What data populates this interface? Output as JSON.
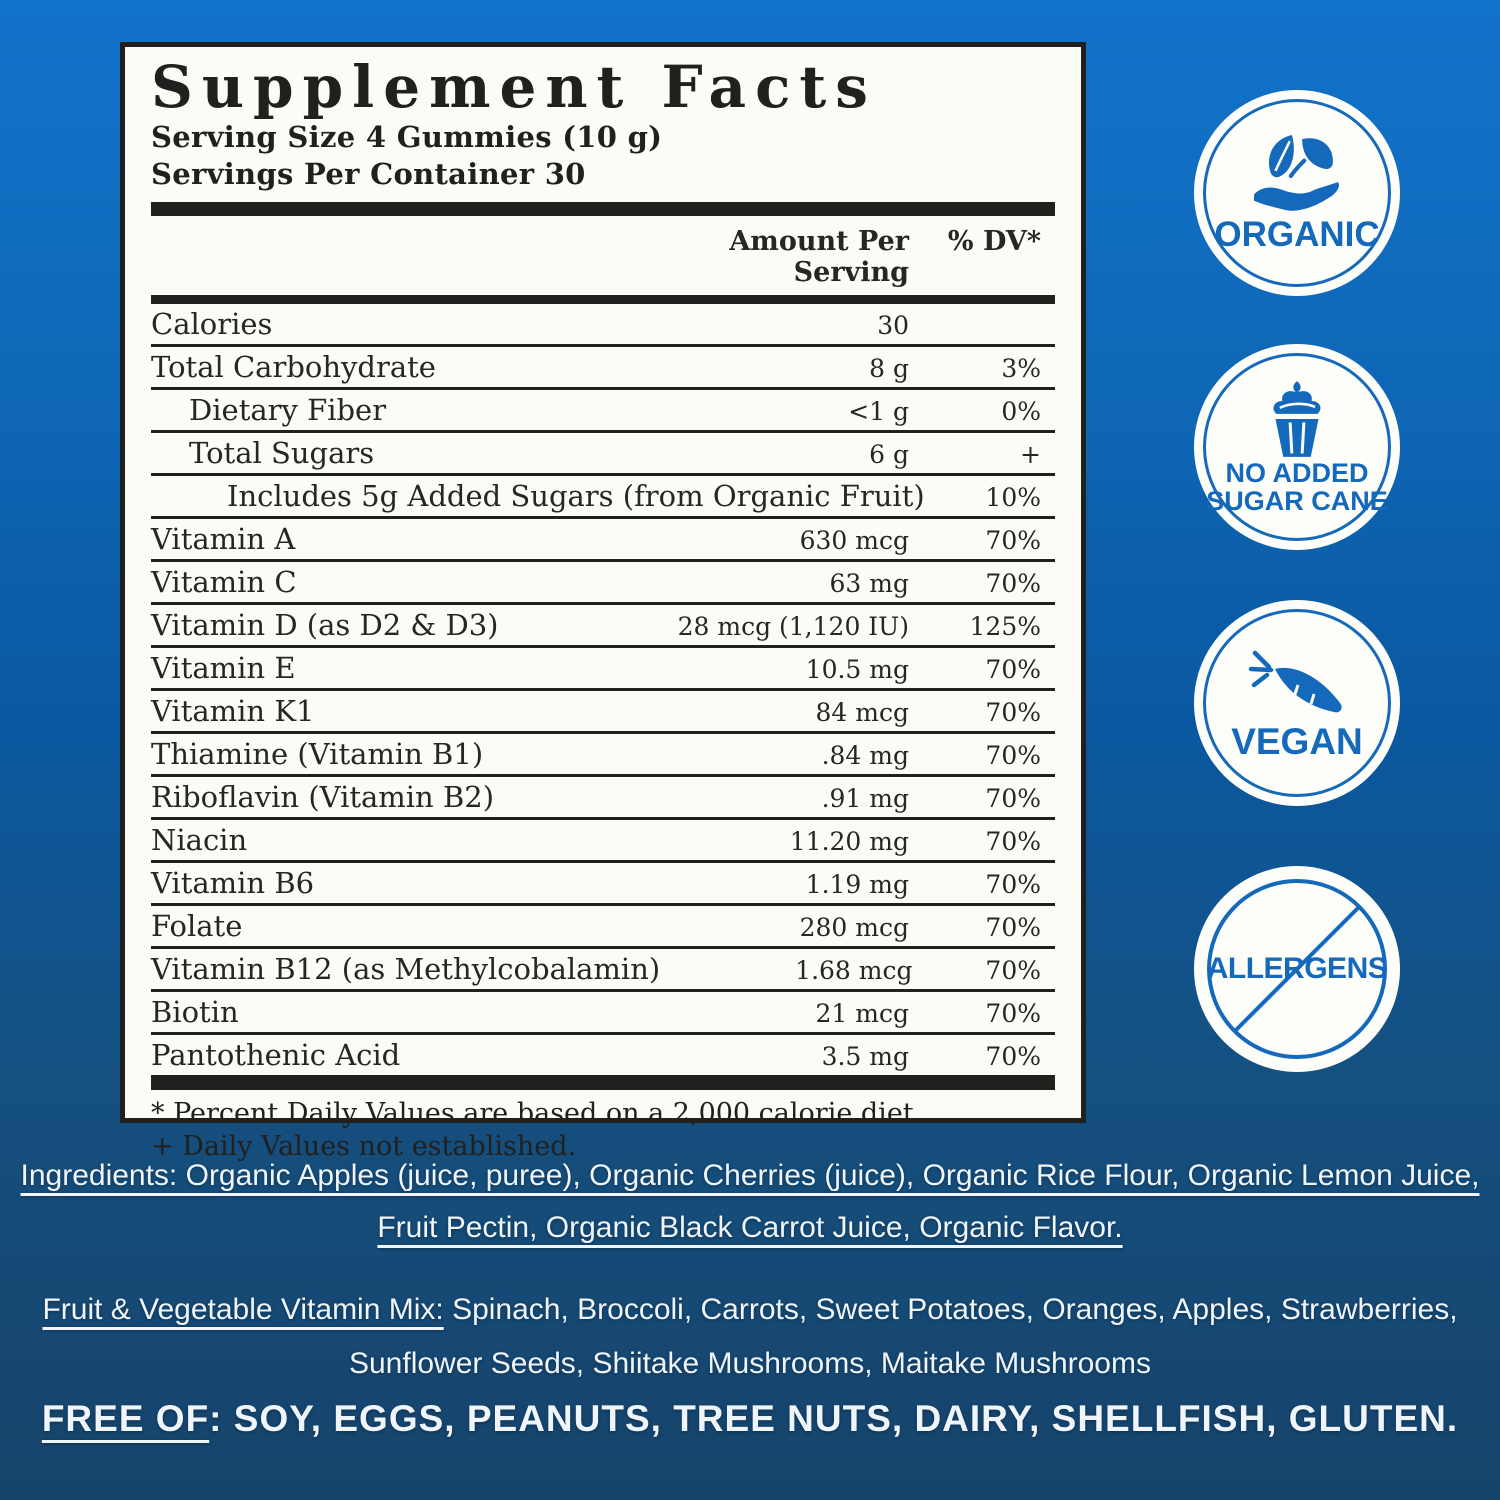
{
  "panel": {
    "title": "Supplement Facts",
    "serving_size": "Serving Size 4 Gummies (10 g)",
    "servings_per_container": "Servings Per Container 30",
    "header": {
      "amount": "Amount Per Serving",
      "dv": "% DV*"
    },
    "rows": [
      {
        "label": "Calories",
        "amount": "30",
        "dv": "",
        "indent": 0
      },
      {
        "label": "Total Carbohydrate",
        "amount": "8 g",
        "dv": "3%",
        "indent": 0
      },
      {
        "label": "Dietary Fiber",
        "amount": "<1 g",
        "dv": "0%",
        "indent": 1
      },
      {
        "label": "Total Sugars",
        "amount": "6 g",
        "dv": "+",
        "indent": 1
      },
      {
        "label": "Includes 5g Added Sugars (from Organic Fruit)",
        "amount": "",
        "dv": "10%",
        "indent": 2
      },
      {
        "label": "Vitamin A",
        "amount": "630 mcg",
        "dv": "70%",
        "indent": 0
      },
      {
        "label": "Vitamin C",
        "amount": "63 mg",
        "dv": "70%",
        "indent": 0
      },
      {
        "label": "Vitamin D (as D2 & D3)",
        "amount": "28 mcg (1,120 IU)",
        "dv": "125%",
        "indent": 0
      },
      {
        "label": "Vitamin E",
        "amount": "10.5 mg",
        "dv": "70%",
        "indent": 0
      },
      {
        "label": "Vitamin K1",
        "amount": "84 mcg",
        "dv": "70%",
        "indent": 0
      },
      {
        "label": "Thiamine (Vitamin B1)",
        "amount": ".84 mg",
        "dv": "70%",
        "indent": 0
      },
      {
        "label": "Riboflavin (Vitamin B2)",
        "amount": ".91 mg",
        "dv": "70%",
        "indent": 0
      },
      {
        "label": "Niacin",
        "amount": "11.20 mg",
        "dv": "70%",
        "indent": 0
      },
      {
        "label": "Vitamin B6",
        "amount": "1.19 mg",
        "dv": "70%",
        "indent": 0
      },
      {
        "label": "Folate",
        "amount": "280 mcg",
        "dv": "70%",
        "indent": 0
      },
      {
        "label": "Vitamin B12 (as Methylcobalamin)",
        "amount": "1.68 mcg",
        "dv": "70%",
        "indent": 0
      },
      {
        "label": "Biotin",
        "amount": "21 mcg",
        "dv": "70%",
        "indent": 0
      },
      {
        "label": "Pantothenic Acid",
        "amount": "3.5 mg",
        "dv": "70%",
        "indent": 0
      }
    ],
    "footnote_dv": "* Percent Daily Values are based on a 2,000 calorie diet.",
    "footnote_plus": "+ Daily Values not established."
  },
  "badges": {
    "organic": {
      "label": "ORGANIC",
      "icon": "hand-holding-leaves-icon"
    },
    "no_added_sugar": {
      "line1": "NO ADDED",
      "line2": "SUGAR CANE",
      "icon": "cupcake-icon"
    },
    "vegan": {
      "label": "VEGAN",
      "icon": "carrot-icon"
    },
    "allergens": {
      "label": "ALLERGENS",
      "icon": "crossed-circle-icon"
    }
  },
  "bottom": {
    "ingredients": "Ingredients: Organic Apples (juice, puree), Organic Cherries (juice), Organic Rice Flour, Organic Lemon Juice, Fruit Pectin, Organic Black Carrot Juice, Organic Flavor.",
    "mix_label": "Fruit & Vegetable Vitamin Mix:",
    "mix_rest": " Spinach, Broccoli, Carrots, Sweet Potatoes, Oranges, Apples, Strawberries, Sunflower Seeds, Shiitake Mushrooms, Maitake Mushrooms",
    "free_of_label": "FREE OF",
    "free_of_rest": ": SOY, EGGS, PEANUTS, TREE NUTS, DAIRY, SHELLFISH, GLUTEN."
  },
  "colors": {
    "background_top": "#1273CB",
    "background_bottom": "#16436B",
    "badge_blue": "#1569BB",
    "panel_background": "#FCFBF6",
    "panel_ink": "#20201E",
    "bottom_text": "#EFF5FA"
  }
}
